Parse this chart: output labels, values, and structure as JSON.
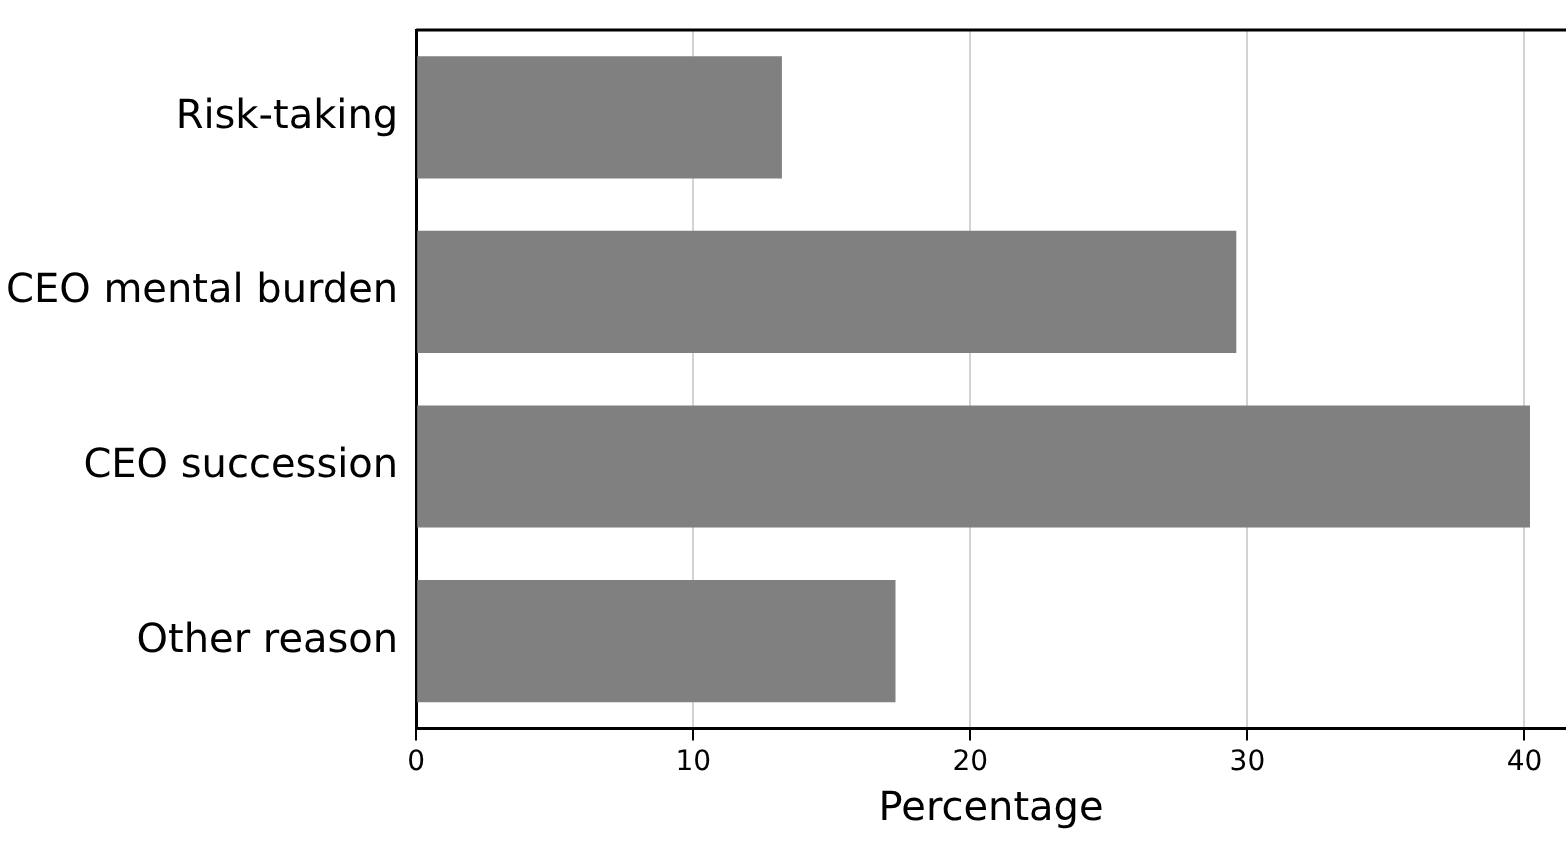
{
  "chart_data": {
    "type": "bar",
    "orientation": "horizontal",
    "xlabel": "Percentage",
    "categories": [
      "Risk-taking",
      "CEO mental burden",
      "CEO succession",
      "Other reason"
    ],
    "values": [
      13.2,
      29.6,
      40.2,
      17.3
    ],
    "color": "#808080",
    "xlim": [
      0,
      41.5
    ],
    "xticks": [
      0,
      10,
      20,
      30,
      40
    ],
    "grid": "x",
    "legend": false
  }
}
